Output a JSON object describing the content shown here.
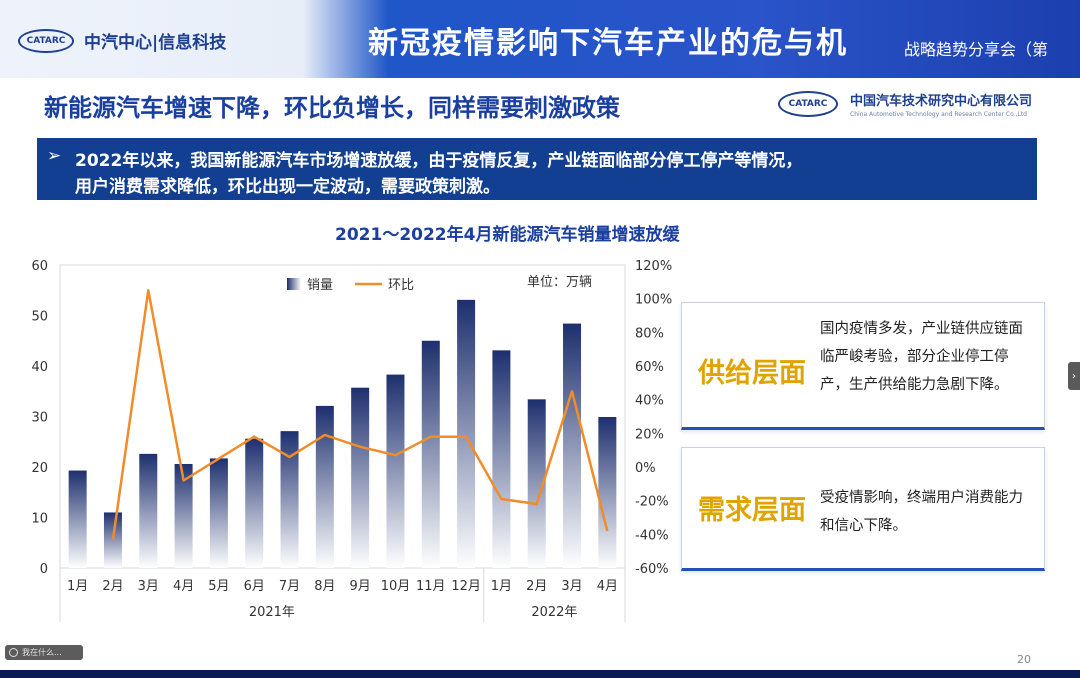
{
  "header": {
    "org": "中汽中心|信息科技",
    "logo_text": "CATARC",
    "title": "新冠疫情影响下汽车产业的危与机",
    "subtitle": "战略趋势分享会（第"
  },
  "slide": {
    "heading": "新能源汽车增速下降，环比负增长，同样需要刺激政策",
    "company_cn": "中国汽车技术研究中心有限公司",
    "company_en": "China Automotive Technology and Research Center Co.,Ltd",
    "banner_arrow": "➢",
    "banner_line1": "2022年以来，我国新能源汽车市场增速放缓，由于疫情反复，产业链面临部分停工停产等情况，",
    "banner_line2": "用户消费需求降低，环比出现一定波动，需要政策刺激。",
    "chart_title": "2021～2022年4月新能源汽车销量增速放缓",
    "page_number": "20",
    "side_handle": "›",
    "toolbar_text": "我在什么..."
  },
  "panels": {
    "supply": {
      "key": "供给层面",
      "desc": "国内疫情多发，产业链供应链面临严峻考验，部分企业停工停产，生产供给能力急剧下降。"
    },
    "demand": {
      "key": "需求层面",
      "desc": "受疫情影响，终端用户消费能力和信心下降。"
    }
  },
  "colors": {
    "title_blue": "#1a3f9e",
    "banner_navy": "#123f92",
    "bar_dark": "#1d2f6e",
    "bar_light": "#ffffff",
    "line_orange": "#f08c2a",
    "panel_key_gold": "#e0a400"
  },
  "chart_data": {
    "type": "bar+line",
    "categories": [
      "1月",
      "2月",
      "3月",
      "4月",
      "5月",
      "6月",
      "7月",
      "8月",
      "9月",
      "10月",
      "11月",
      "12月",
      "1月",
      "2月",
      "3月",
      "4月"
    ],
    "year_groups": [
      {
        "label": "2021年",
        "count": 12
      },
      {
        "label": "2022年",
        "count": 4
      }
    ],
    "series": [
      {
        "name": "销量",
        "type": "bar",
        "axis": "left",
        "values": [
          19.3,
          11.0,
          22.6,
          20.6,
          21.7,
          25.6,
          27.1,
          32.1,
          35.7,
          38.3,
          45.0,
          53.1,
          43.1,
          33.4,
          48.4,
          29.9
        ]
      },
      {
        "name": "环比",
        "type": "line",
        "axis": "right",
        "values": [
          null,
          -43,
          105,
          -8,
          5,
          18,
          6,
          19,
          12,
          7,
          18,
          18,
          -19,
          -22,
          45,
          -38
        ]
      }
    ],
    "unit_label": "单位：万辆",
    "y_left": {
      "min": 0,
      "max": 60,
      "ticks": [
        0,
        10,
        20,
        30,
        40,
        50,
        60
      ]
    },
    "y_right": {
      "min": -60,
      "max": 120,
      "ticks": [
        "-60%",
        "-40%",
        "-20%",
        "0%",
        "20%",
        "40%",
        "60%",
        "80%",
        "100%",
        "120%"
      ]
    },
    "legend_position": "top",
    "grid": false
  }
}
